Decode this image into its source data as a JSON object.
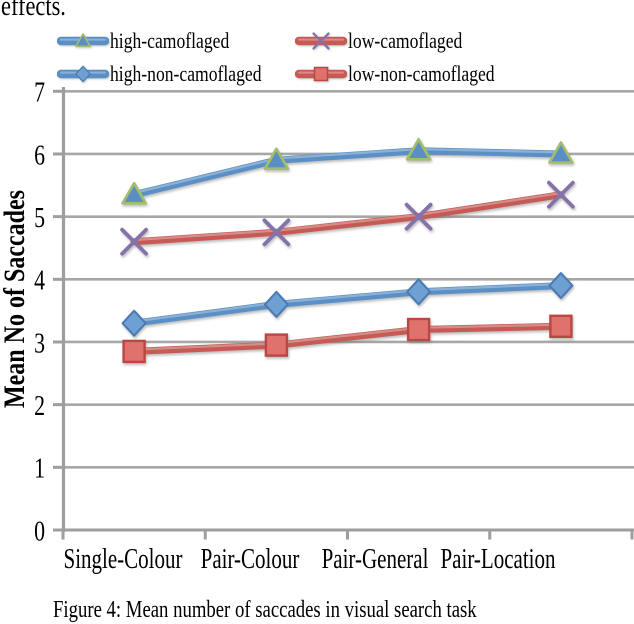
{
  "page": {
    "top_text": "effects.",
    "caption": "Figure 4: Mean number of saccades in visual search task"
  },
  "chart_data": {
    "type": "line",
    "title": "",
    "xlabel": "",
    "ylabel": "Mean No of Saccades",
    "categories": [
      "Single-Colour",
      "Pair-Colour",
      "Pair-General",
      "Pair-Location"
    ],
    "ylim": [
      0,
      7
    ],
    "yticks": [
      0,
      1,
      2,
      3,
      4,
      5,
      6,
      7
    ],
    "grid": true,
    "legend_position": "top",
    "series": [
      {
        "name": "high-camoflaged",
        "marker": "triangle",
        "color": "#5b90c6",
        "marker_fill": "#5b8ec4",
        "marker_edge": "#a3bd6a",
        "values": [
          5.35,
          5.9,
          6.05,
          6.0
        ]
      },
      {
        "name": "low-camoflaged",
        "marker": "x",
        "color": "#c65b56",
        "marker_fill": "none",
        "marker_edge": "#8472aa",
        "values": [
          4.6,
          4.75,
          5.0,
          5.35
        ]
      },
      {
        "name": "high-non-camoflaged",
        "marker": "diamond",
        "color": "#5b90c6",
        "marker_fill": "#6fa0d4",
        "marker_edge": "#4a7ab0",
        "values": [
          3.3,
          3.6,
          3.8,
          3.9
        ]
      },
      {
        "name": "low-non-camoflaged",
        "marker": "square",
        "color": "#c65b56",
        "marker_fill": "#e0726e",
        "marker_edge": "#b94743",
        "values": [
          2.85,
          2.95,
          3.2,
          3.25
        ]
      }
    ],
    "colors": {
      "gridline": "#a7a7a7",
      "axis": "#9e9e9e",
      "text": "#000000"
    }
  }
}
